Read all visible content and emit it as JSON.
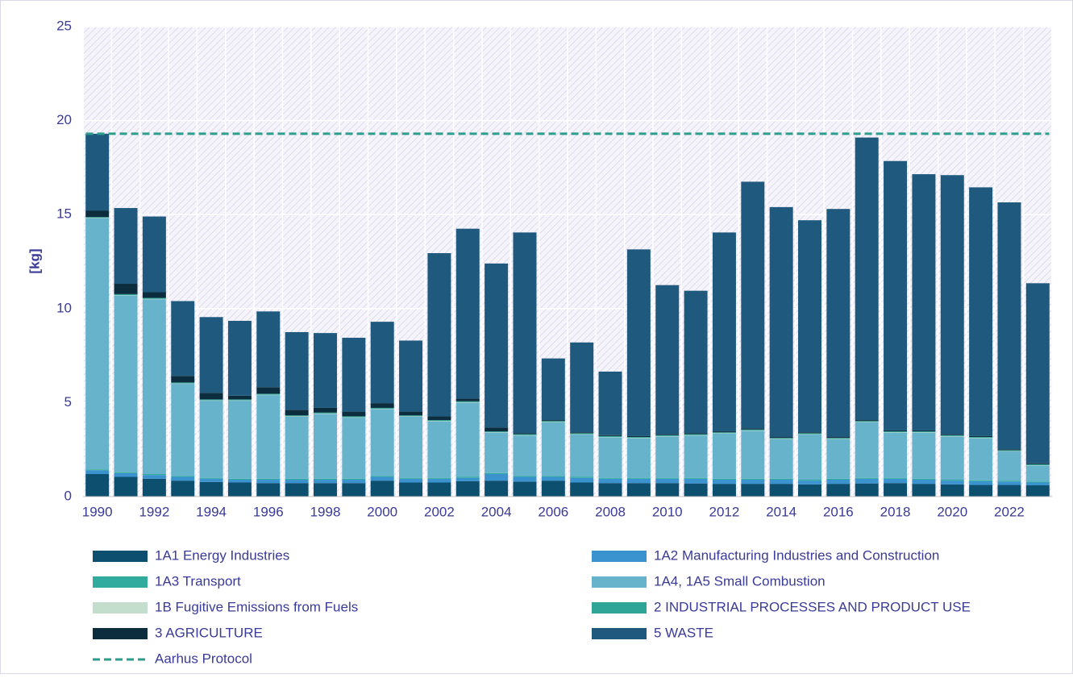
{
  "chart_data": {
    "type": "stacked_bar",
    "y_label": "[kg]",
    "categories": [
      "1990",
      null,
      "1992",
      null,
      "1994",
      null,
      "1996",
      null,
      "1998",
      null,
      "2000",
      null,
      "2002",
      null,
      "2004",
      null,
      "2006",
      null,
      "2008",
      null,
      "2010",
      null,
      "2012",
      null,
      "2014",
      null,
      "2016",
      null,
      "2018",
      null,
      "2020",
      null,
      "2022",
      null
    ],
    "ylim": [
      0,
      25
    ],
    "yticks": [
      0,
      5,
      10,
      15,
      20,
      25
    ],
    "grid": true,
    "legend": "bottom",
    "series": [
      {
        "name": "1A1 Energy Industries",
        "color": "#0d4f6e",
        "values": [
          1.2,
          1.05,
          0.95,
          0.85,
          0.78,
          0.75,
          0.72,
          0.72,
          0.72,
          0.72,
          0.85,
          0.75,
          0.75,
          0.82,
          0.85,
          0.8,
          0.85,
          0.75,
          0.72,
          0.72,
          0.72,
          0.7,
          0.68,
          0.68,
          0.68,
          0.65,
          0.68,
          0.7,
          0.72,
          0.68,
          0.65,
          0.62,
          0.62,
          0.6
        ]
      },
      {
        "name": "1A2 Manufacturing Industries and Construction",
        "color": "#3a93cf",
        "values": [
          0.2,
          0.2,
          0.2,
          0.2,
          0.17,
          0.15,
          0.18,
          0.18,
          0.18,
          0.18,
          0.2,
          0.2,
          0.2,
          0.18,
          0.35,
          0.25,
          0.2,
          0.25,
          0.23,
          0.23,
          0.23,
          0.25,
          0.22,
          0.22,
          0.22,
          0.2,
          0.22,
          0.25,
          0.23,
          0.22,
          0.2,
          0.2,
          0.18,
          0.15
        ]
      },
      {
        "name": "1A3 Transport",
        "color": "#30ab9d",
        "values": [
          0.05,
          0.05,
          0.05,
          0.05,
          0.05,
          0.05,
          0.05,
          0.05,
          0.05,
          0.05,
          0.05,
          0.05,
          0.05,
          0.05,
          0.05,
          0.05,
          0.05,
          0.05,
          0.05,
          0.05,
          0.05,
          0.05,
          0.05,
          0.05,
          0.05,
          0.05,
          0.05,
          0.05,
          0.05,
          0.05,
          0.05,
          0.05,
          0.05,
          0.05
        ]
      },
      {
        "name": "1A4, 1A5 Small Combustion",
        "color": "#68b3cc",
        "values": [
          13.35,
          9.4,
          9.3,
          4.9,
          4.1,
          4.15,
          4.45,
          3.3,
          3.45,
          3.25,
          3.55,
          3.25,
          3.0,
          3.95,
          2.15,
          2.15,
          2.85,
          2.25,
          2.15,
          2.1,
          2.2,
          2.25,
          2.4,
          2.55,
          2.1,
          2.4,
          2.1,
          2.95,
          2.4,
          2.45,
          2.3,
          2.23,
          1.55,
          0.85
        ]
      },
      {
        "name": "1B Fugitive Emissions from Fuels",
        "color": "#c4dece",
        "values": [
          0.02,
          0.02,
          0.02,
          0.02,
          0.02,
          0.02,
          0.02,
          0.02,
          0.02,
          0.02,
          0.02,
          0.02,
          0.02,
          0.02,
          0.02,
          0.02,
          0.02,
          0.02,
          0.02,
          0.02,
          0.02,
          0.02,
          0.02,
          0.02,
          0.02,
          0.02,
          0.02,
          0.02,
          0.02,
          0.02,
          0.02,
          0.02,
          0.02,
          0.02
        ]
      },
      {
        "name": "2 INDUSTRIAL PROCESSES AND PRODUCT USE",
        "color": "#2fa597",
        "values": [
          0.05,
          0.05,
          0.05,
          0.05,
          0.05,
          0.05,
          0.05,
          0.05,
          0.05,
          0.05,
          0.05,
          0.05,
          0.05,
          0.05,
          0.05,
          0.05,
          0.05,
          0.05,
          0.05,
          0.05,
          0.05,
          0.05,
          0.05,
          0.05,
          0.05,
          0.05,
          0.05,
          0.05,
          0.05,
          0.05,
          0.05,
          0.05,
          0.05,
          0.05
        ]
      },
      {
        "name": "3 AGRICULTURE",
        "color": "#0b2d3e",
        "values": [
          0.35,
          0.55,
          0.3,
          0.35,
          0.35,
          0.2,
          0.35,
          0.3,
          0.25,
          0.25,
          0.25,
          0.2,
          0.2,
          0.15,
          0.2,
          0.05,
          0.05,
          0.05,
          0.05,
          0.05,
          0.05,
          0.05,
          0.05,
          0.05,
          0.05,
          0.05,
          0.05,
          0.05,
          0.05,
          0.05,
          0.05,
          0.05,
          0.05,
          0.05
        ]
      },
      {
        "name": "5 WASTE",
        "color": "#1f5a7e",
        "values": [
          4.08,
          4.03,
          4.03,
          3.98,
          4.03,
          3.98,
          4.03,
          4.13,
          3.98,
          3.93,
          4.33,
          3.78,
          8.68,
          9.03,
          8.73,
          10.68,
          3.28,
          4.78,
          3.38,
          9.93,
          7.93,
          7.58,
          10.58,
          13.13,
          12.23,
          11.28,
          12.13,
          15.03,
          14.33,
          13.63,
          13.78,
          13.23,
          13.13,
          9.58
        ]
      }
    ],
    "reference": {
      "name": "Aarhus Protocol",
      "value": 19.3,
      "color": "#2e9e8c"
    }
  }
}
